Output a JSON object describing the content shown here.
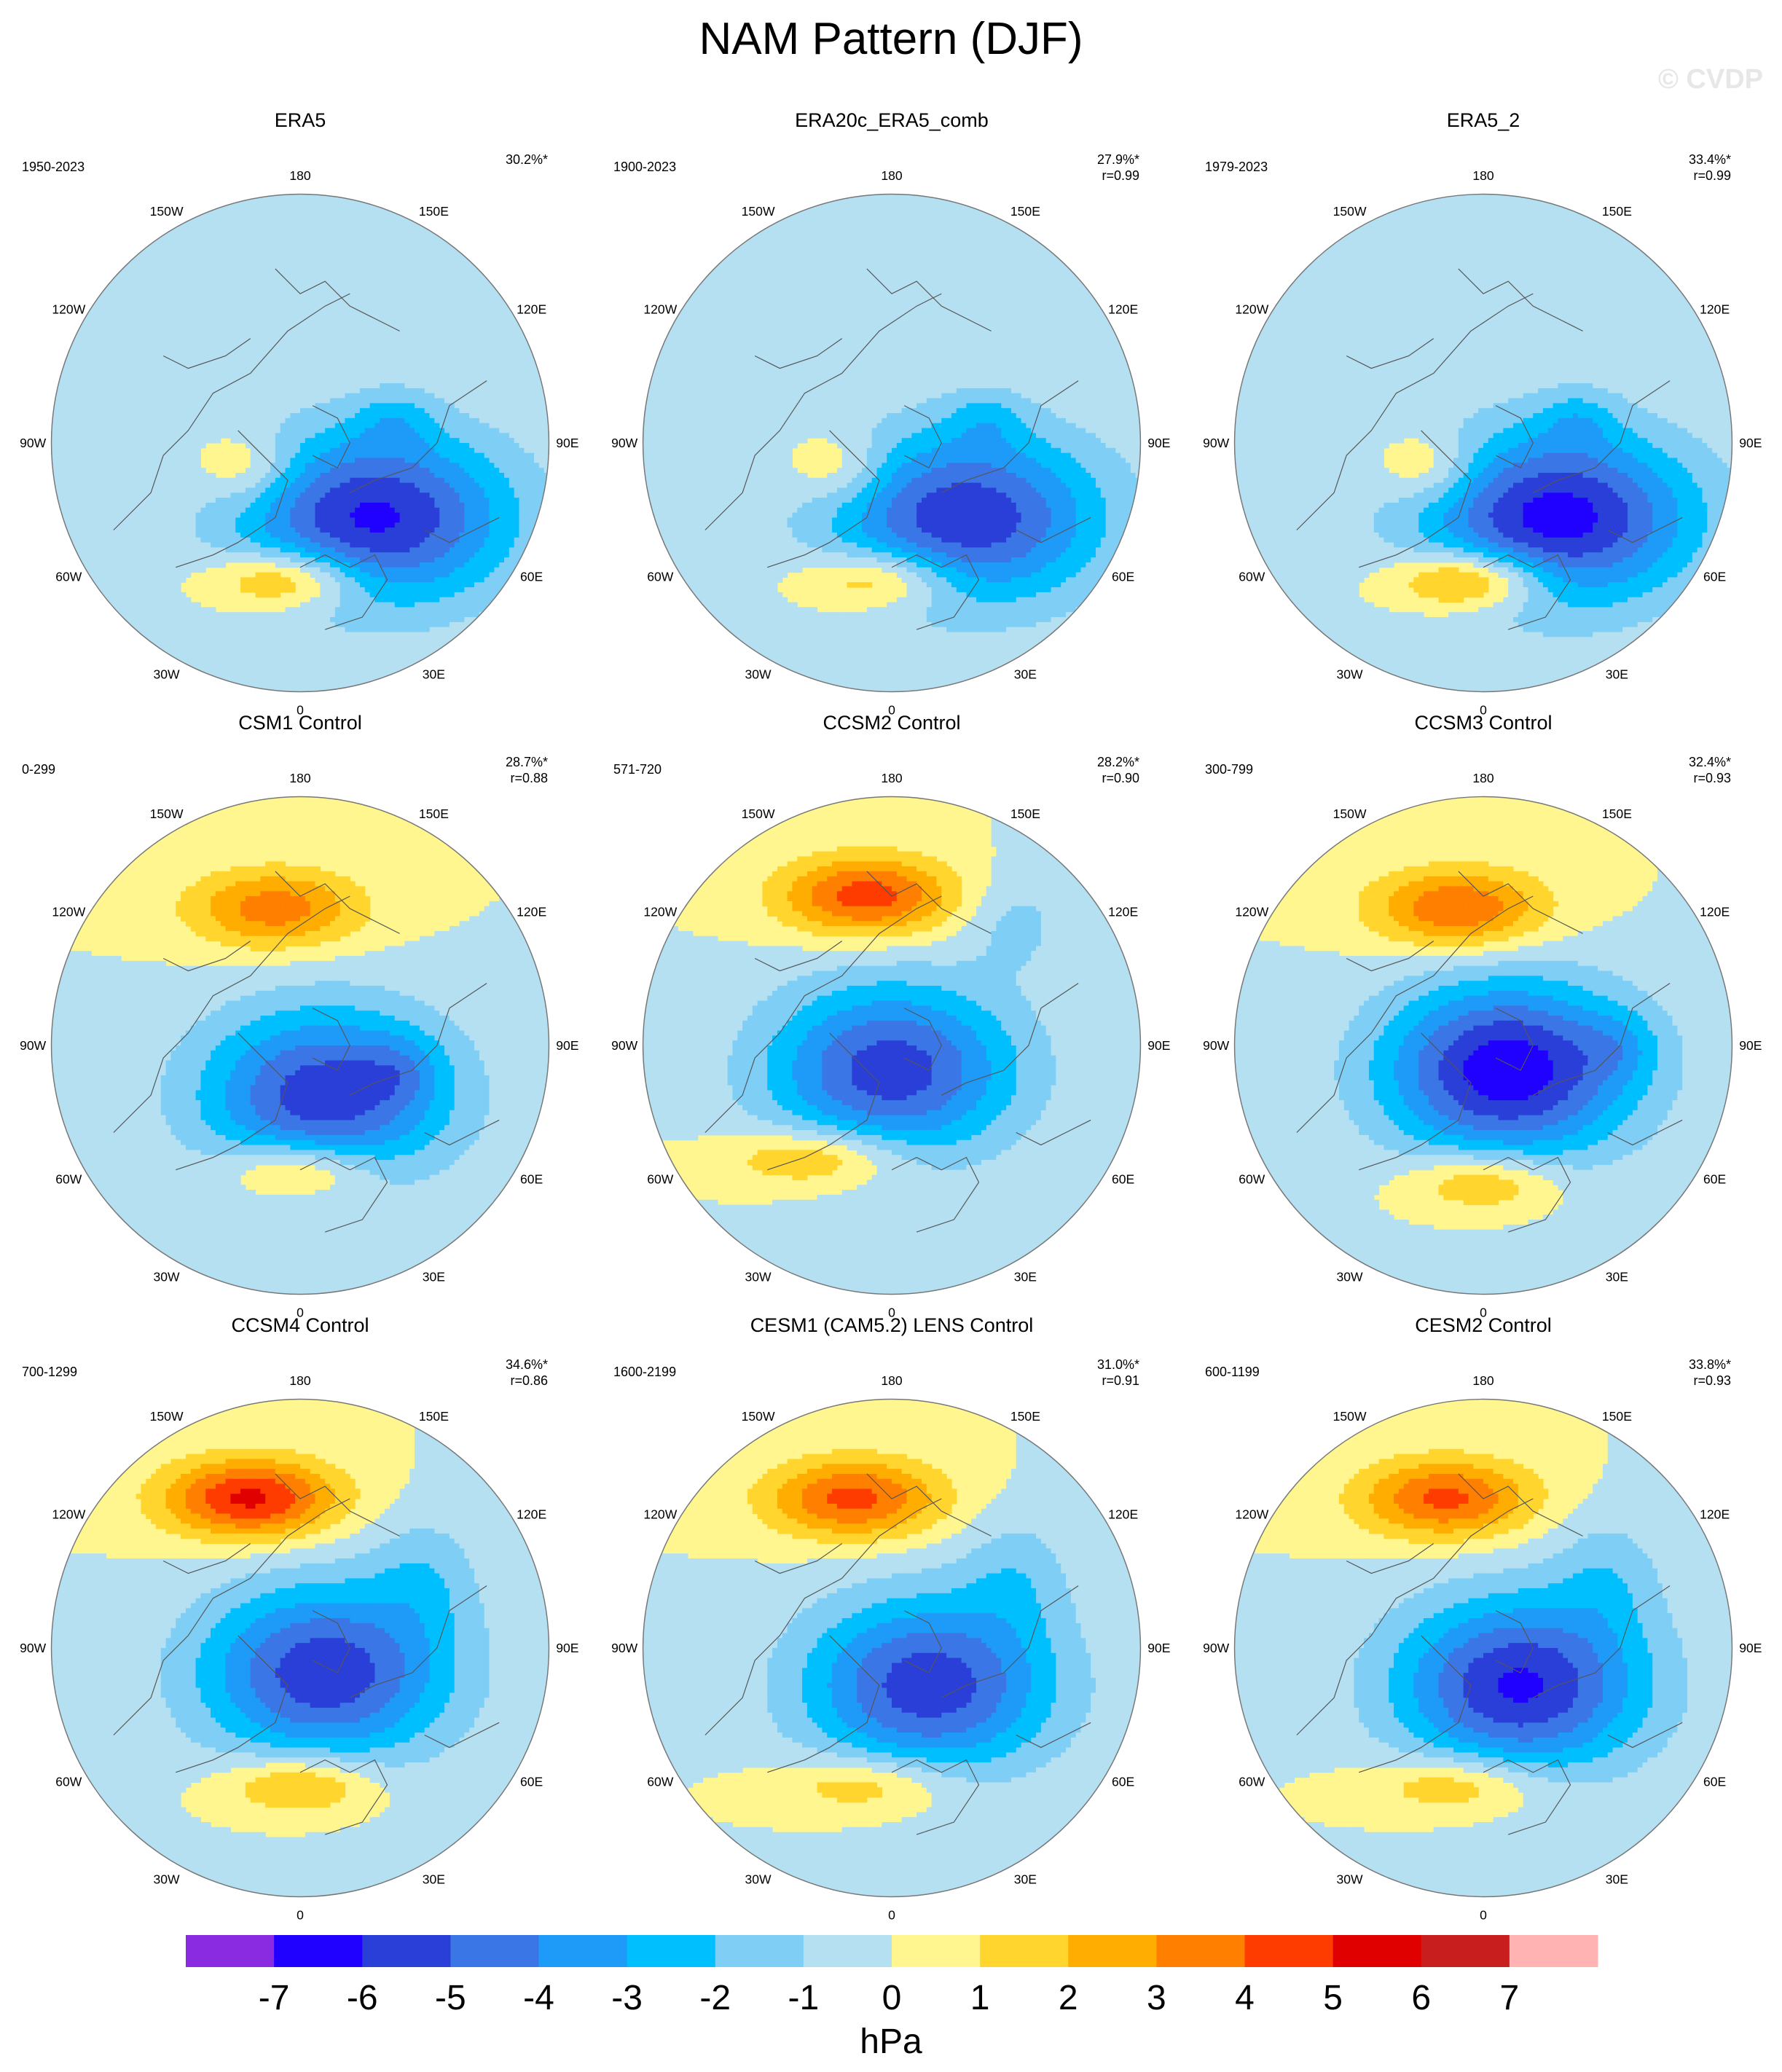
{
  "title": "NAM Pattern (DJF)",
  "watermark": "© CVDP",
  "colorbar": {
    "unit": "hPa",
    "ticks": [
      "-7",
      "-6",
      "-5",
      "-4",
      "-3",
      "-2",
      "-1",
      "0",
      "1",
      "2",
      "3",
      "4",
      "5",
      "6",
      "7"
    ],
    "bin_colors": [
      "#8a2be2",
      "#2000ff",
      "#2a3fd8",
      "#3a76e6",
      "#1e9bf8",
      "#00bfff",
      "#7fcef5",
      "#b4e0f2",
      "#fff68f",
      "#ffd52e",
      "#ffad00",
      "#ff7f00",
      "#ff3c00",
      "#e10000",
      "#c81e1e",
      "#ffb3b3"
    ]
  },
  "lon_labels": [
    "180",
    "150E",
    "120E",
    "90E",
    "60E",
    "30E",
    "0",
    "30W",
    "60W",
    "90W",
    "120W",
    "150W"
  ],
  "panels": [
    {
      "title": "ERA5",
      "years": "1950-2023",
      "pct": "30.2%*",
      "r": "",
      "pos": {
        "a": [
          0.3,
          0.3,
          -6.2,
          0.55,
          0.35
        ],
        "b": [
          -0.05,
          0.55,
          3.6,
          0.3,
          0.12
        ],
        "c": [
          -0.22,
          0.1,
          1.9,
          0.2,
          0.14
        ],
        "d": [
          0.38,
          -0.1,
          -1.4,
          0.16,
          0.12
        ]
      }
    },
    {
      "title": "ERA20c_ERA5_comb",
      "years": "1900-2023",
      "pct": "27.9%*",
      "r": "r=0.99",
      "pos": {
        "a": [
          0.3,
          0.3,
          -5.8,
          0.55,
          0.35
        ],
        "b": [
          -0.05,
          0.55,
          3.1,
          0.3,
          0.12
        ],
        "c": [
          -0.22,
          0.1,
          1.8,
          0.2,
          0.14
        ],
        "d": [
          0.38,
          -0.1,
          -1.3,
          0.16,
          0.12
        ]
      }
    },
    {
      "title": "ERA5_2",
      "years": "1979-2023",
      "pct": "33.4%*",
      "r": "r=0.99",
      "pos": {
        "a": [
          0.3,
          0.3,
          -6.5,
          0.55,
          0.35
        ],
        "b": [
          -0.05,
          0.55,
          4.2,
          0.3,
          0.12
        ],
        "c": [
          -0.22,
          0.1,
          2.0,
          0.2,
          0.14
        ],
        "d": [
          0.38,
          -0.1,
          -1.4,
          0.16,
          0.12
        ]
      }
    },
    {
      "title": "CSM1 Control",
      "years": "0-299",
      "pct": "28.7%*",
      "r": "r=0.88",
      "pos": {
        "a": [
          0.1,
          0.2,
          -5.7,
          0.5,
          0.35
        ],
        "b": [
          -0.1,
          -0.55,
          3.6,
          0.35,
          0.16
        ],
        "c": [
          0.0,
          0.5,
          3.0,
          0.3,
          0.12
        ],
        "d": [
          0.4,
          0.1,
          -1.2,
          0.16,
          0.14
        ]
      }
    },
    {
      "title": "CCSM2 Control",
      "years": "571-720",
      "pct": "28.2%*",
      "r": "r=0.90",
      "pos": {
        "a": [
          0.0,
          0.1,
          -5.6,
          0.5,
          0.35
        ],
        "b": [
          -0.1,
          -0.6,
          4.6,
          0.35,
          0.16
        ],
        "c": [
          -0.3,
          0.45,
          2.8,
          0.35,
          0.12
        ],
        "d": [
          0.5,
          -0.5,
          -1.3,
          0.2,
          0.2
        ]
      }
    },
    {
      "title": "CCSM3 Control",
      "years": "300-799",
      "pct": "32.4%*",
      "r": "r=0.93",
      "pos": {
        "a": [
          0.1,
          0.1,
          -6.8,
          0.5,
          0.35
        ],
        "b": [
          -0.1,
          -0.55,
          4.1,
          0.35,
          0.16
        ],
        "c": [
          0.0,
          0.55,
          2.7,
          0.3,
          0.12
        ],
        "d": [
          0.55,
          0.0,
          -1.2,
          0.16,
          0.14
        ]
      }
    },
    {
      "title": "CCSM4 Control",
      "years": "700-1299",
      "pct": "34.6%*",
      "r": "r=0.86",
      "pos": {
        "a": [
          0.1,
          0.1,
          -5.8,
          0.5,
          0.35
        ],
        "b": [
          -0.2,
          -0.6,
          5.3,
          0.35,
          0.16
        ],
        "c": [
          0.0,
          0.55,
          2.9,
          0.3,
          0.12
        ],
        "d": [
          0.5,
          -0.3,
          -1.4,
          0.22,
          0.25
        ]
      }
    },
    {
      "title": "CESM1 (CAM5.2) LENS Control",
      "years": "1600-2199",
      "pct": "31.0%*",
      "r": "r=0.91",
      "pos": {
        "a": [
          0.15,
          0.15,
          -5.7,
          0.5,
          0.35
        ],
        "b": [
          -0.15,
          -0.6,
          4.4,
          0.35,
          0.16
        ],
        "c": [
          -0.1,
          0.55,
          2.3,
          0.35,
          0.12
        ],
        "d": [
          0.5,
          -0.3,
          -1.4,
          0.22,
          0.25
        ]
      }
    },
    {
      "title": "CESM2 Control",
      "years": "600-1199",
      "pct": "33.8%*",
      "r": "r=0.93",
      "pos": {
        "a": [
          0.15,
          0.15,
          -6.2,
          0.5,
          0.35
        ],
        "b": [
          -0.15,
          -0.6,
          4.3,
          0.35,
          0.16
        ],
        "c": [
          -0.1,
          0.55,
          2.5,
          0.35,
          0.12
        ],
        "d": [
          0.5,
          -0.3,
          -1.4,
          0.22,
          0.25
        ]
      }
    }
  ]
}
